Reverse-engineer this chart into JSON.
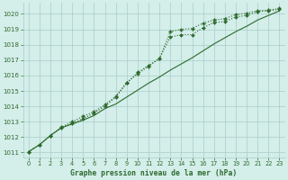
{
  "xlabel": "Graphe pression niveau de la mer (hPa)",
  "xlim": [
    -0.5,
    23.5
  ],
  "ylim": [
    1010.7,
    1020.7
  ],
  "yticks": [
    1011,
    1012,
    1013,
    1014,
    1015,
    1016,
    1017,
    1018,
    1019,
    1020
  ],
  "xticks": [
    0,
    1,
    2,
    3,
    4,
    5,
    6,
    7,
    8,
    9,
    10,
    11,
    12,
    13,
    14,
    15,
    16,
    17,
    18,
    19,
    20,
    21,
    22,
    23
  ],
  "bg_color": "#d4eeea",
  "grid_color": "#a8cdc8",
  "line_color": "#2d6a2d",
  "line1_y": [
    1011.05,
    1011.5,
    1012.1,
    1012.6,
    1012.85,
    1013.1,
    1013.4,
    1013.85,
    1014.15,
    1014.6,
    1015.05,
    1015.5,
    1015.9,
    1016.35,
    1016.75,
    1017.15,
    1017.6,
    1018.05,
    1018.45,
    1018.85,
    1019.2,
    1019.6,
    1019.9,
    1020.2
  ],
  "line2_y": [
    1011.05,
    1011.5,
    1012.1,
    1012.6,
    1012.9,
    1013.2,
    1013.55,
    1014.0,
    1014.6,
    1015.5,
    1016.2,
    1016.65,
    1017.1,
    1018.5,
    1018.65,
    1018.65,
    1019.1,
    1019.45,
    1019.5,
    1019.8,
    1019.9,
    1020.15,
    1020.2,
    1020.3
  ],
  "line3_y": [
    1011.05,
    1011.5,
    1012.1,
    1012.65,
    1013.0,
    1013.35,
    1013.65,
    1014.1,
    1014.65,
    1015.55,
    1016.1,
    1016.6,
    1017.1,
    1018.85,
    1019.0,
    1019.05,
    1019.4,
    1019.6,
    1019.7,
    1019.95,
    1020.05,
    1020.2,
    1020.25,
    1020.35
  ]
}
